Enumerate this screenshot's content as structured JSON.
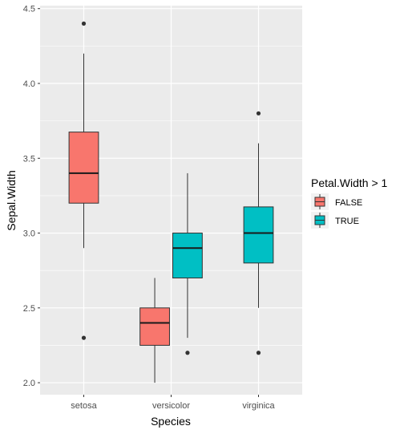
{
  "chart_data": {
    "type": "boxplot",
    "title": "",
    "xlabel": "Species",
    "ylabel": "Sepal.Width",
    "ylim": [
      1.92,
      4.52
    ],
    "yticks": [
      "2.0",
      "2.5",
      "3.0",
      "3.5",
      "4.0",
      "4.5"
    ],
    "categories": [
      "setosa",
      "versicolor",
      "virginica"
    ],
    "grid": true,
    "legend": {
      "title": "Petal.Width > 1",
      "placement": "right",
      "entries": [
        {
          "label": "FALSE",
          "color": "#F8766D"
        },
        {
          "label": "TRUE",
          "color": "#00BFC4"
        }
      ]
    },
    "boxes": [
      {
        "category": "setosa",
        "group": "FALSE",
        "lower_whisker": 2.9,
        "q1": 3.2,
        "median": 3.4,
        "q3": 3.675,
        "upper_whisker": 4.2,
        "outliers": [
          4.4,
          2.3
        ]
      },
      {
        "category": "versicolor",
        "group": "FALSE",
        "lower_whisker": 2.0,
        "q1": 2.25,
        "median": 2.4,
        "q3": 2.5,
        "upper_whisker": 2.7,
        "outliers": []
      },
      {
        "category": "versicolor",
        "group": "TRUE",
        "lower_whisker": 2.3,
        "q1": 2.7,
        "median": 2.9,
        "q3": 3.0,
        "upper_whisker": 3.4,
        "outliers": [
          2.2
        ]
      },
      {
        "category": "virginica",
        "group": "TRUE",
        "lower_whisker": 2.5,
        "q1": 2.8,
        "median": 3.0,
        "q3": 3.175,
        "upper_whisker": 3.6,
        "outliers": [
          3.8,
          2.2
        ]
      }
    ]
  }
}
